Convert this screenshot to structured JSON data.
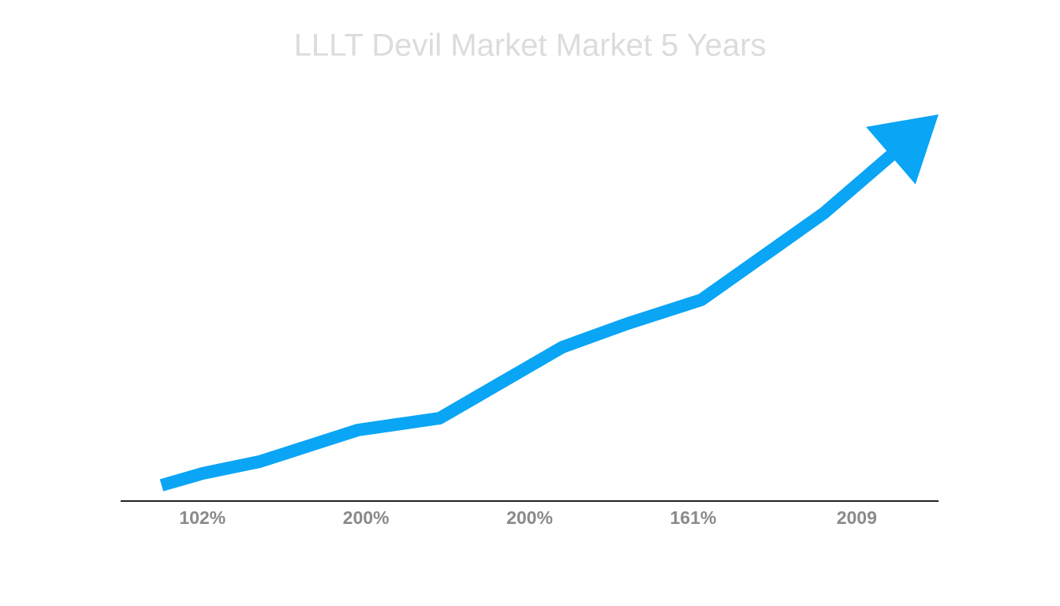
{
  "chart_data": {
    "type": "line",
    "title": "LLLT Devil Market Market 5 Years",
    "categories": [
      "102%",
      "200%",
      "200%",
      "161%",
      "2009"
    ],
    "x": [
      5,
      10,
      17,
      29,
      39,
      54,
      62,
      71,
      86,
      100
    ],
    "xlim": [
      0,
      100
    ],
    "series": [
      {
        "color": "#0aa5f5",
        "values": [
          4,
          7,
          10,
          18,
          21,
          39,
          45,
          51,
          73,
          98
        ]
      }
    ],
    "ylim": [
      0,
      100
    ],
    "arrow": true
  }
}
